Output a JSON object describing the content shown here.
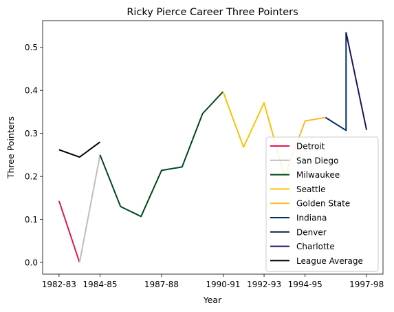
{
  "chart_data": {
    "type": "line",
    "title": "Ricky Pierce Career Three Pointers",
    "xlabel": "Year",
    "ylabel": "Three Pointers",
    "x_ticks": [
      "1982-83",
      "1984-85",
      "1987-88",
      "1990-91",
      "1992-93",
      "1994-95",
      "1997-98"
    ],
    "x_tick_positions": [
      0,
      2,
      5,
      8,
      10,
      12,
      15
    ],
    "x_range": [
      -0.8,
      15.8
    ],
    "ylim": [
      -0.027,
      0.562
    ],
    "y_ticks": [
      0.0,
      0.1,
      0.2,
      0.3,
      0.4,
      0.5
    ],
    "y_tick_labels": [
      "0.0",
      "0.1",
      "0.2",
      "0.3",
      "0.4",
      "0.5"
    ],
    "grid": false,
    "legend_position": "lower-right",
    "series": [
      {
        "name": "Detroit",
        "color": "#e0164e",
        "points": [
          [
            0,
            0.143
          ],
          [
            1,
            0.0
          ]
        ]
      },
      {
        "name": "San Diego",
        "color": "#bdbdbd",
        "points": [
          [
            1,
            0.0
          ],
          [
            2,
            0.25
          ]
        ]
      },
      {
        "name": "Milwaukee",
        "color": "#00471b",
        "points": [
          [
            2,
            0.25
          ],
          [
            3,
            0.13
          ],
          [
            4,
            0.107
          ],
          [
            5,
            0.214
          ],
          [
            6,
            0.222
          ],
          [
            7,
            0.346
          ],
          [
            8,
            0.397
          ]
        ]
      },
      {
        "name": "Seattle",
        "color": "#ffc200",
        "points": [
          [
            8,
            0.397
          ],
          [
            9,
            0.268
          ],
          [
            10,
            0.371
          ],
          [
            11,
            0.2
          ]
        ]
      },
      {
        "name": "Golden State",
        "color": "#fdb927",
        "points": [
          [
            11,
            0.2
          ],
          [
            12,
            0.329
          ],
          [
            13,
            0.337
          ]
        ]
      },
      {
        "name": "Indiana",
        "color": "#002d62",
        "points": [
          [
            13,
            0.337
          ],
          [
            14,
            0.307
          ],
          [
            14,
            0.535
          ]
        ]
      },
      {
        "name": "Denver",
        "color": "#0e2240",
        "points": [
          [
            14,
            0.535
          ],
          [
            14,
            0.535
          ]
        ]
      },
      {
        "name": "Charlotte",
        "color": "#1d1160",
        "points": [
          [
            14,
            0.535
          ],
          [
            15,
            0.308
          ]
        ]
      },
      {
        "name": "League Average",
        "color": "#000000",
        "points": [
          [
            0,
            0.262
          ],
          [
            1,
            0.245
          ],
          [
            2,
            0.28
          ]
        ]
      }
    ]
  }
}
